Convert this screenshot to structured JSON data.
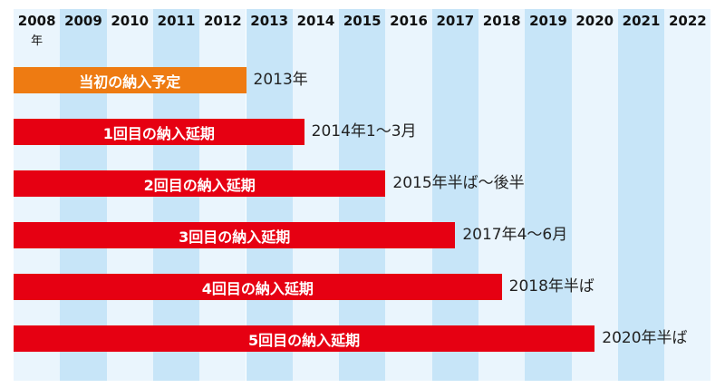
{
  "chart_data": {
    "type": "bar",
    "orientation": "horizontal",
    "axis": {
      "years": [
        2008,
        2009,
        2010,
        2011,
        2012,
        2013,
        2014,
        2015,
        2016,
        2017,
        2018,
        2019,
        2020,
        2021,
        2022
      ],
      "first_year_unit": "年",
      "position": "top"
    },
    "series": [
      {
        "name": "当初の納入予定",
        "end": 2013.0,
        "value_label": "2013年",
        "color": "#ee7b12"
      },
      {
        "name": "1回目の納入延期",
        "end": 2014.25,
        "value_label": "2014年1～3月",
        "color": "#e60012"
      },
      {
        "name": "2回目の納入延期",
        "end": 2016.0,
        "value_label": "2015年半ば～後半",
        "color": "#e60012"
      },
      {
        "name": "3回目の納入延期",
        "end": 2017.5,
        "value_label": "2017年4～6月",
        "color": "#e60012"
      },
      {
        "name": "4回目の納入延期",
        "end": 2018.5,
        "value_label": "2018年半ば",
        "color": "#e60012"
      },
      {
        "name": "5回目の納入延期",
        "end": 2020.5,
        "value_label": "2020年半ば",
        "color": "#e60012"
      }
    ],
    "column_colors": {
      "light": "#eaf5fd",
      "dark": "#c7e5f8"
    }
  }
}
